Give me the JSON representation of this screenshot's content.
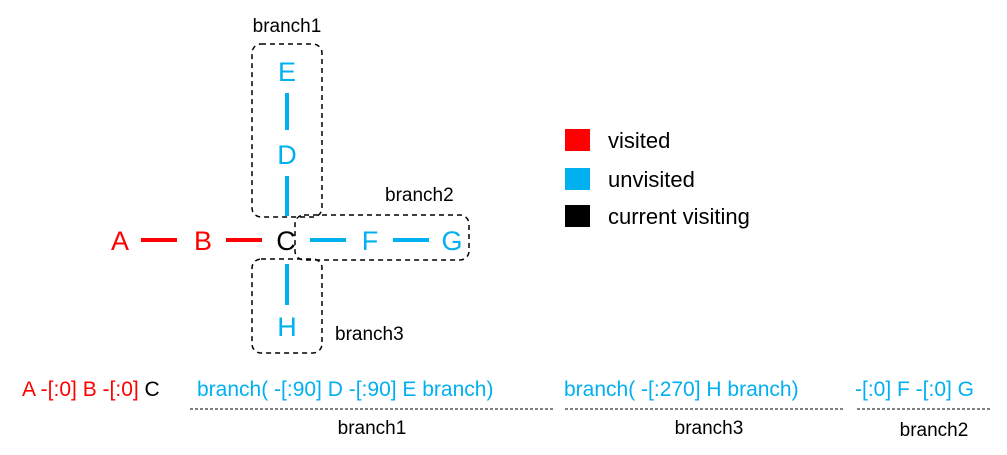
{
  "colors": {
    "visited": "#ff0000",
    "unvisited": "#00b0f0",
    "current": "#000000"
  },
  "nodes": {
    "A": {
      "label": "A",
      "state": "visited"
    },
    "B": {
      "label": "B",
      "state": "visited"
    },
    "C": {
      "label": "C",
      "state": "current"
    },
    "D": {
      "label": "D",
      "state": "unvisited"
    },
    "E": {
      "label": "E",
      "state": "unvisited"
    },
    "F": {
      "label": "F",
      "state": "unvisited"
    },
    "G": {
      "label": "G",
      "state": "unvisited"
    },
    "H": {
      "label": "H",
      "state": "unvisited"
    }
  },
  "branches": {
    "branch1": "branch1",
    "branch2": "branch2",
    "branch3": "branch3"
  },
  "legend": [
    {
      "label": "visited",
      "state": "visited"
    },
    {
      "label": "unvisited",
      "state": "unvisited"
    },
    {
      "label": "current visiting",
      "state": "current"
    }
  ],
  "sequence": {
    "red": "A -[:0] B -[:0] ",
    "current": "C ",
    "part_branch1": "branch( -[:90] D -[:90] E branch)",
    "part_branch3": "branch( -[:270] H branch)",
    "part_branch2": "-[:0] F -[:0] G"
  },
  "sequence_labels": {
    "branch1": "branch1",
    "branch3": "branch3",
    "branch2": "branch2"
  }
}
